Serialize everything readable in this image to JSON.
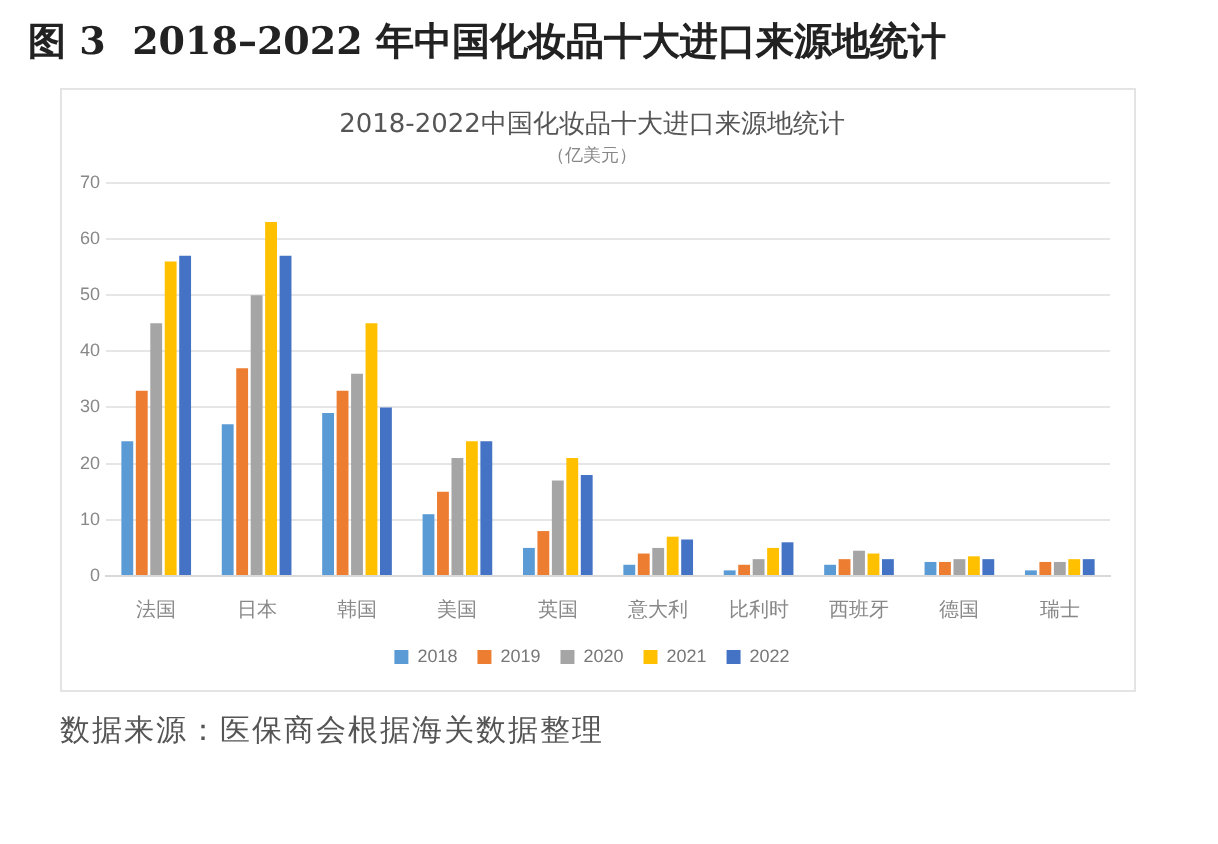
{
  "chart_data": {
    "type": "bar",
    "title": "2018-2022中国化妆品十大进口来源地统计",
    "subtitle": "（亿美元）",
    "annotations": [
      "图 3  2018–2022 年中国化妆品十大进口来源地统计",
      "数据来源：医保商会根据海关数据整理"
    ],
    "categories": [
      "法国",
      "日本",
      "韩国",
      "美国",
      "英国",
      "意大利",
      "比利时",
      "西班牙",
      "德国",
      "瑞士"
    ],
    "series": [
      {
        "name": "2018",
        "color": "#5b9bd5",
        "values": [
          24,
          27,
          29,
          11,
          5,
          2,
          1,
          2,
          2.5,
          1
        ]
      },
      {
        "name": "2019",
        "color": "#ed7d31",
        "values": [
          33,
          37,
          33,
          15,
          8,
          4,
          2,
          3,
          2.5,
          2.5
        ]
      },
      {
        "name": "2020",
        "color": "#a5a5a5",
        "values": [
          45,
          50,
          36,
          21,
          17,
          5,
          3,
          4.5,
          3,
          2.5
        ]
      },
      {
        "name": "2021",
        "color": "#ffc000",
        "values": [
          56,
          63,
          45,
          24,
          21,
          7,
          5,
          4,
          3.5,
          3
        ]
      },
      {
        "name": "2022",
        "color": "#4472c4",
        "values": [
          57,
          57,
          30,
          24,
          18,
          6.5,
          6,
          3,
          3,
          3
        ]
      }
    ],
    "ylim": [
      0,
      70
    ],
    "yticks": [
      0,
      10,
      20,
      30,
      40,
      50,
      60,
      70
    ],
    "grid": "y",
    "legend": "bottom"
  }
}
